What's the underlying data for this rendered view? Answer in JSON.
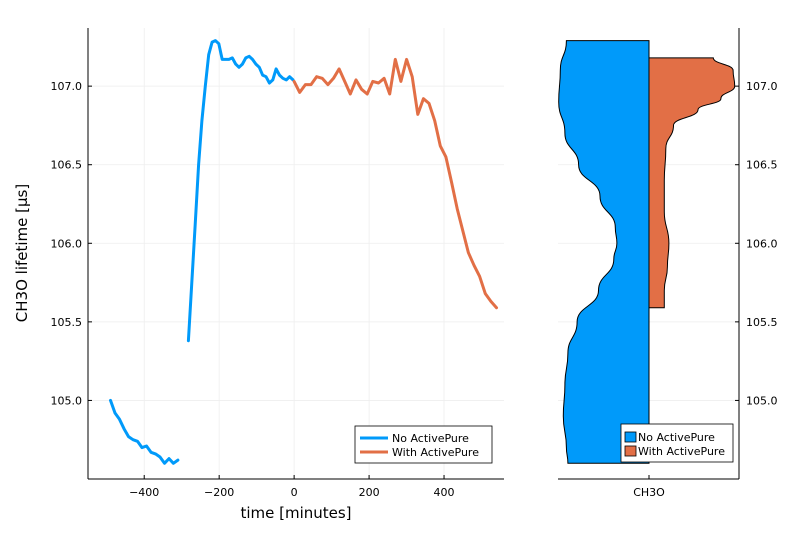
{
  "colors": {
    "no_activepure": "#009AFA",
    "with_activepure": "#E26F46",
    "axis": "#000000",
    "grid": "#eeeeee"
  },
  "chart_data": [
    {
      "type": "line",
      "xlabel": "time [minutes]",
      "ylabel": "CH3O lifetime [µs]",
      "xlim": [
        -550,
        560
      ],
      "ylim": [
        104.5,
        107.37
      ],
      "grid": true,
      "legend_position": "bottom-right",
      "xticks": [
        -400,
        -200,
        0,
        200,
        400
      ],
      "xtick_labels": [
        "−400",
        "−200",
        "0",
        "200",
        "400"
      ],
      "yticks": [
        105.0,
        105.5,
        106.0,
        106.5,
        107.0
      ],
      "ytick_labels": [
        "105.0",
        "105.5",
        "106.0",
        "106.5",
        "107.0"
      ],
      "series": [
        {
          "name": "No ActivePure",
          "segments": [
            {
              "x": [
                -490,
                -478,
                -466,
                -454,
                -442,
                -430,
                -418,
                -406,
                -394,
                -382,
                -370,
                -358,
                -346,
                -334,
                -322,
                -310
              ],
              "y": [
                105.0,
                104.92,
                104.88,
                104.82,
                104.77,
                104.75,
                104.74,
                104.7,
                104.71,
                104.67,
                104.66,
                104.64,
                104.6,
                104.63,
                104.6,
                104.62
              ]
            },
            {
              "x": [
                -282,
                -273,
                -264,
                -255,
                -246,
                -237,
                -228,
                -219,
                -210,
                -201,
                -192,
                -183,
                -174,
                -165,
                -156,
                -147,
                -138,
                -129,
                -120,
                -111,
                -102,
                -93,
                -84,
                -75,
                -66,
                -57,
                -48,
                -39,
                -30,
                -21,
                -12,
                -3
              ],
              "y": [
                105.38,
                105.75,
                106.12,
                106.5,
                106.78,
                107.0,
                107.2,
                107.28,
                107.29,
                107.27,
                107.17,
                107.17,
                107.17,
                107.18,
                107.14,
                107.12,
                107.14,
                107.18,
                107.19,
                107.17,
                107.14,
                107.12,
                107.07,
                107.06,
                107.02,
                107.04,
                107.11,
                107.07,
                107.05,
                107.04,
                107.06,
                107.04
              ]
            }
          ]
        },
        {
          "name": "With ActivePure",
          "segments": [
            {
              "x": [
                0,
                15,
                30,
                45,
                60,
                75,
                90,
                105,
                120,
                135,
                150,
                165,
                180,
                195,
                210,
                225,
                240,
                255,
                270,
                285,
                300,
                315,
                330,
                345,
                360,
                375,
                390,
                405,
                420,
                435,
                450,
                465,
                480,
                495,
                510,
                525,
                540
              ],
              "y": [
                107.03,
                106.96,
                107.01,
                107.01,
                107.06,
                107.05,
                107.01,
                107.05,
                107.11,
                107.03,
                106.95,
                107.04,
                106.98,
                106.95,
                107.03,
                107.02,
                107.05,
                106.95,
                107.17,
                107.03,
                107.17,
                107.06,
                106.82,
                106.92,
                106.89,
                106.78,
                106.62,
                106.55,
                106.39,
                106.22,
                106.08,
                105.94,
                105.86,
                105.79,
                105.68,
                105.63,
                105.59
              ]
            }
          ]
        }
      ]
    },
    {
      "type": "violin",
      "xtick_labels": [
        "CH3O"
      ],
      "ylim": [
        104.5,
        107.37
      ],
      "yticks": [
        105.0,
        105.5,
        106.0,
        106.5,
        107.0
      ],
      "ytick_labels": [
        "105.0",
        "105.5",
        "106.0",
        "106.5",
        "107.0"
      ],
      "legend_position": "bottom-right",
      "series": [
        {
          "name": "No ActivePure",
          "side": "left",
          "y": [
            107.29,
            107.1,
            106.9,
            106.7,
            106.5,
            106.3,
            106.1,
            106.0,
            105.9,
            105.7,
            105.5,
            105.3,
            105.1,
            104.9,
            104.7,
            104.6
          ],
          "width": [
            0.54,
            0.58,
            0.59,
            0.55,
            0.46,
            0.32,
            0.22,
            0.21,
            0.23,
            0.33,
            0.47,
            0.53,
            0.55,
            0.56,
            0.54,
            0.53
          ]
        },
        {
          "name": "With ActivePure",
          "side": "right",
          "y": [
            107.18,
            107.1,
            107.0,
            106.92,
            106.85,
            106.75,
            106.6,
            106.4,
            106.2,
            106.0,
            105.85,
            105.7,
            105.59
          ],
          "width": [
            0.42,
            0.55,
            0.56,
            0.47,
            0.32,
            0.16,
            0.11,
            0.1,
            0.1,
            0.13,
            0.12,
            0.1,
            0.1
          ]
        }
      ]
    }
  ]
}
